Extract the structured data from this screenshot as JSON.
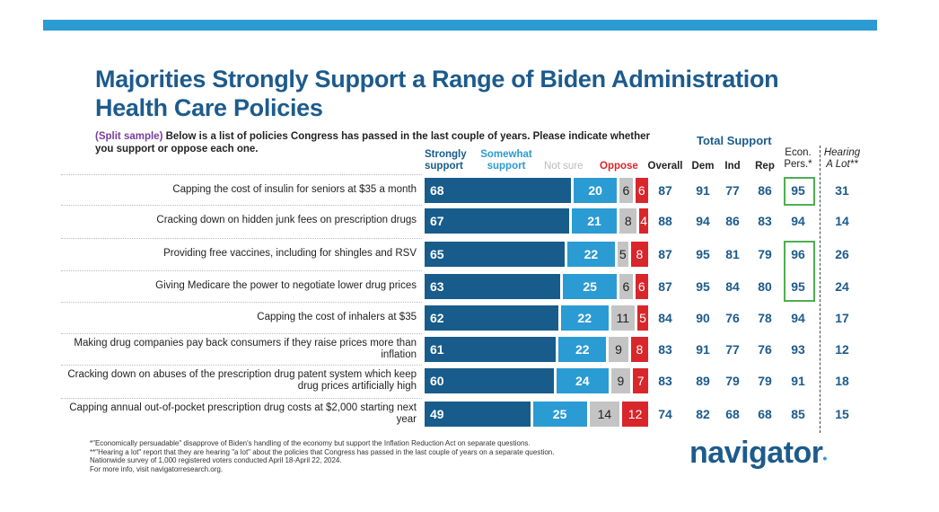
{
  "title": "Majorities Strongly Support a Range of Biden Administration Health Care Policies",
  "question": {
    "prefix": "(Split sample)",
    "text": " Below is a list of policies Congress has passed in the last couple of years. Please indicate whether you support or oppose each one."
  },
  "colors": {
    "strongly": "#175c8a",
    "somewhat": "#2b9bd3",
    "not_sure": "#c4c4c4",
    "oppose": "#d9262b",
    "accent_box": "#4caf50"
  },
  "chart_data": {
    "type": "bar",
    "orientation": "horizontal-stacked",
    "legend": [
      "Strongly support",
      "Somewhat support",
      "Not sure",
      "Oppose"
    ],
    "categories": [
      "Capping the cost of insulin for seniors at $35 a month",
      "Cracking down on hidden junk fees on prescription drugs",
      "Providing free vaccines, including for shingles and RSV",
      "Giving Medicare the power to negotiate lower drug prices",
      "Capping the cost of inhalers at $35",
      "Making drug companies pay back consumers if they raise prices more than inflation",
      "Cracking down on abuses of the prescription drug patent system which keep drug prices artificially high",
      "Capping annual out-of-pocket prescription drug costs at $2,000 starting next year"
    ],
    "series": [
      {
        "name": "Strongly support",
        "values": [
          68,
          67,
          65,
          63,
          62,
          61,
          60,
          49
        ]
      },
      {
        "name": "Somewhat support",
        "values": [
          20,
          21,
          22,
          25,
          22,
          22,
          24,
          25
        ]
      },
      {
        "name": "Not sure",
        "values": [
          6,
          8,
          5,
          6,
          11,
          9,
          9,
          14
        ]
      },
      {
        "name": "Oppose",
        "values": [
          6,
          4,
          8,
          6,
          5,
          8,
          7,
          12
        ]
      }
    ]
  },
  "table": {
    "group_header": "Total Support",
    "columns": [
      "Overall",
      "Dem",
      "Ind",
      "Rep",
      "Econ. Pers.*",
      "Hearing A Lot**"
    ],
    "rows": [
      [
        87,
        91,
        77,
        86,
        95,
        31
      ],
      [
        88,
        94,
        86,
        83,
        94,
        14
      ],
      [
        87,
        95,
        81,
        79,
        96,
        26
      ],
      [
        87,
        95,
        84,
        80,
        95,
        24
      ],
      [
        84,
        90,
        76,
        78,
        94,
        17
      ],
      [
        83,
        91,
        77,
        76,
        93,
        12
      ],
      [
        83,
        89,
        79,
        79,
        91,
        18
      ],
      [
        74,
        82,
        68,
        68,
        85,
        15
      ]
    ],
    "highlighted_econ_rows": [
      0,
      2,
      3
    ]
  },
  "footnotes": [
    "*\"Economically persuadable\" disapprove of Biden's handling of the economy but support the Inflation Reduction Act on separate questions.",
    "**\"Hearing a lot\" report that they are hearing \"a lot\" about the policies that Congress has passed in the last couple of years on a separate question.",
    "Nationwide survey of 1,000 registered voters conducted April 18-April 22, 2024.",
    "For more info, visit navigatorresearch.org."
  ],
  "logo": "navigator"
}
